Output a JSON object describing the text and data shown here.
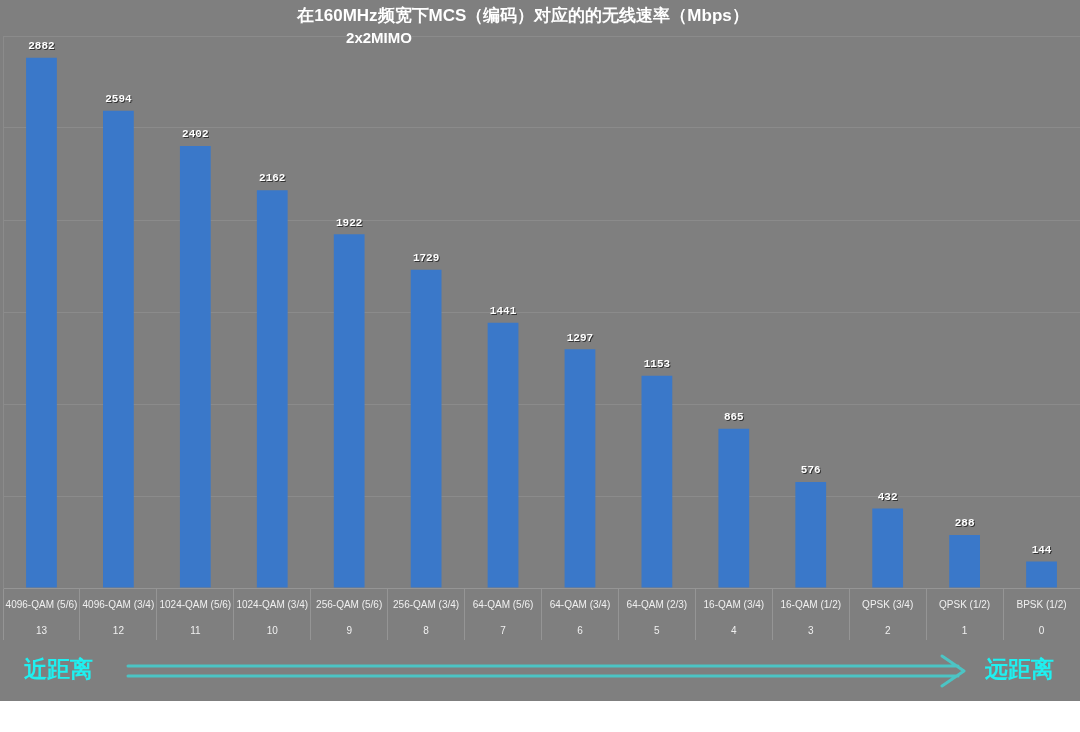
{
  "chart_data": {
    "type": "bar",
    "title": "在160MHz频宽下MCS（编码）对应的的无线速率（Mbps）",
    "subtitle": "2x2MIMO",
    "categories": [
      "4096-QAM (5/6)\n13",
      "4096-QAM (3/4)\n12",
      "1024-QAM (5/6)\n11",
      "1024-QAM (3/4)\n10",
      "256-QAM (5/6)\n9",
      "256-QAM (3/4)\n8",
      "64-QAM (5/6)\n7",
      "64-QAM (3/4)\n6",
      "64-QAM (2/3)\n5",
      "16-QAM (3/4)\n4",
      "16-QAM (1/2)\n3",
      "QPSK (3/4)\n2",
      "QPSK (1/2)\n1",
      "BPSK (1/2)\n0"
    ],
    "values": [
      2882,
      2594,
      2402,
      2162,
      1922,
      1729,
      1441,
      1297,
      1153,
      865,
      576,
      432,
      288,
      144
    ],
    "color": "#3a78c9",
    "ylim": [
      0,
      3000
    ],
    "yticks": [
      {
        "value": 0,
        "label": null
      },
      {
        "value": 500,
        "label": null
      },
      {
        "value": 1000,
        "label": null
      },
      {
        "value": 1500,
        "label": null
      },
      {
        "value": 2000,
        "label": null
      },
      {
        "value": 2500,
        "label": null
      },
      {
        "value": 3000,
        "label": null
      }
    ],
    "grid": "y",
    "tick_labels": "x",
    "data_labels": true,
    "annotations": [
      "近距离",
      "远距离"
    ]
  }
}
